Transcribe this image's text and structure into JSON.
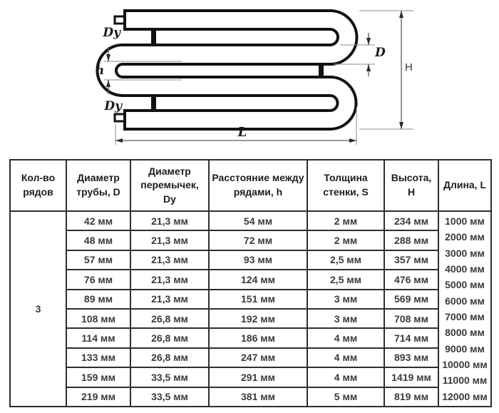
{
  "diagram": {
    "labels": {
      "dy_top": "Dy",
      "dy_bottom": "Dy",
      "h": "h",
      "d": "D",
      "height": "H",
      "length": "L"
    }
  },
  "table": {
    "columns": [
      {
        "label": "Кол-во рядов"
      },
      {
        "label": "Диаметр трубы, D"
      },
      {
        "label": "Диаметр перемычек, Dy"
      },
      {
        "label": "Расстояние между рядами, h"
      },
      {
        "label": "Толщина стенки, S"
      },
      {
        "label": "Высота, H"
      },
      {
        "label": "Длина, L"
      }
    ],
    "rows_count": "3",
    "body": [
      [
        "42 мм",
        "21,3 мм",
        "54 мм",
        "2 мм",
        "234 мм"
      ],
      [
        "48 мм",
        "21,3 мм",
        "72 мм",
        "2 мм",
        "288 мм"
      ],
      [
        "57 мм",
        "21,3 мм",
        "93 мм",
        "2,5 мм",
        "357 мм"
      ],
      [
        "76 мм",
        "21,3 мм",
        "124 мм",
        "2,5 мм",
        "476 мм"
      ],
      [
        "89 мм",
        "21,3 мм",
        "151 мм",
        "3 мм",
        "569 мм"
      ],
      [
        "108 мм",
        "26,8 мм",
        "192 мм",
        "3 мм",
        "708 мм"
      ],
      [
        "114 мм",
        "26,8 мм",
        "186 мм",
        "4 мм",
        "714 мм"
      ],
      [
        "133 мм",
        "26,8 мм",
        "247 мм",
        "4 мм",
        "893 мм"
      ],
      [
        "159 мм",
        "33,5 мм",
        "291 мм",
        "4 мм",
        "1419 мм"
      ],
      [
        "219 мм",
        "33,5 мм",
        "381 мм",
        "5 мм",
        "819 мм"
      ]
    ],
    "lengths": [
      "1000 мм",
      "2000 мм",
      "3000 мм",
      "4000 мм",
      "5000 мм",
      "6000 мм",
      "7000 мм",
      "8000 мм",
      "9000 мм",
      "10000 мм",
      "11000 мм",
      "12000 мм"
    ]
  }
}
